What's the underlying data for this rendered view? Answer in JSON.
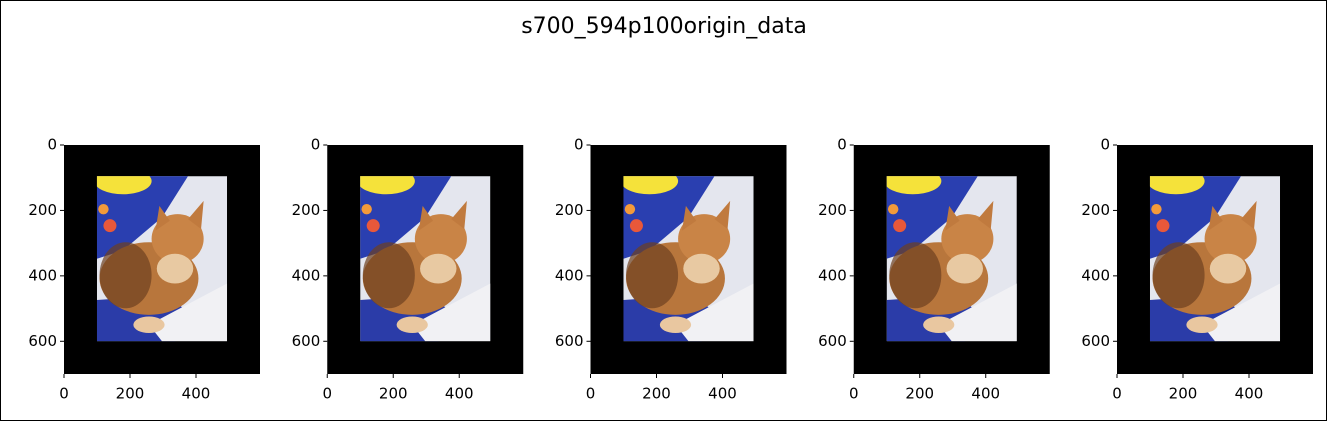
{
  "title": "s700_594p100origin_data",
  "chart_data": [
    {
      "type": "image",
      "xlim": [
        0,
        594
      ],
      "ylim": [
        700,
        0
      ],
      "xticks": [
        0,
        200,
        400
      ],
      "yticks": [
        0,
        200,
        400,
        600
      ]
    },
    {
      "type": "image",
      "xlim": [
        0,
        594
      ],
      "ylim": [
        700,
        0
      ],
      "xticks": [
        0,
        200,
        400
      ],
      "yticks": [
        0,
        200,
        400,
        600
      ]
    },
    {
      "type": "image",
      "xlim": [
        0,
        594
      ],
      "ylim": [
        700,
        0
      ],
      "xticks": [
        0,
        200,
        400
      ],
      "yticks": [
        0,
        200,
        400,
        600
      ]
    },
    {
      "type": "image",
      "xlim": [
        0,
        594
      ],
      "ylim": [
        700,
        0
      ],
      "xticks": [
        0,
        200,
        400
      ],
      "yticks": [
        0,
        200,
        400,
        600
      ]
    },
    {
      "type": "image",
      "xlim": [
        0,
        594
      ],
      "ylim": [
        700,
        0
      ],
      "xticks": [
        0,
        200,
        400
      ],
      "yticks": [
        0,
        200,
        400,
        600
      ]
    }
  ]
}
